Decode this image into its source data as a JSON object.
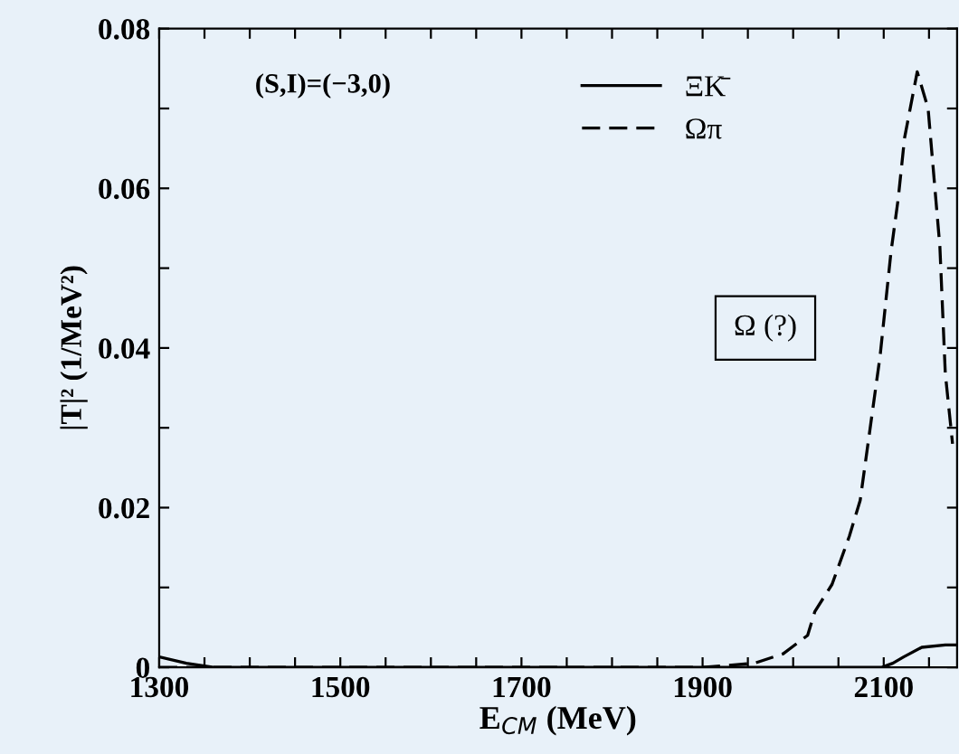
{
  "chart_data": {
    "type": "line",
    "xlabel": "E$_{CM}$ (MeV)",
    "ylabel": "|T|² (1/MeV²)",
    "annotations": [
      "(S,I)=(−3,0)",
      "Ω (?)"
    ],
    "series": [
      {
        "name": "ΞK̄",
        "color": "#000000",
        "line_style": "solid",
        "x": [
          1300,
          1330,
          1360,
          1400,
          1600,
          1800,
          2000,
          2098,
          2110,
          2122,
          2142,
          2168,
          2181
        ],
        "values": [
          0.0013,
          0.0005,
          0.0,
          0.0,
          0.0,
          0.0,
          0.0,
          0.0,
          0.0005,
          0.0013,
          0.0025,
          0.0028,
          0.0028
        ]
      },
      {
        "name": "Ωπ",
        "color": "#000000",
        "line_style": "dashed",
        "x": [
          1300,
          1600,
          1900,
          1957,
          1989,
          2016,
          2024,
          2043,
          2062,
          2074,
          2096,
          2108,
          2116,
          2123,
          2137,
          2149,
          2162,
          2168,
          2176
        ],
        "values": [
          0.0,
          0.0,
          0.0,
          0.0005,
          0.0017,
          0.004,
          0.007,
          0.0104,
          0.0164,
          0.0209,
          0.039,
          0.052,
          0.0587,
          0.0663,
          0.0746,
          0.07,
          0.0527,
          0.0368,
          0.028
        ]
      }
    ],
    "xlim": [
      1300,
      2181
    ],
    "ylim": [
      0,
      0.08
    ],
    "xticks": [
      1300,
      {
        "value": 1350,
        "label": null
      },
      {
        "value": 1400,
        "label": null
      },
      {
        "value": 1450,
        "label": null
      },
      1500,
      {
        "value": 1550,
        "label": null
      },
      {
        "value": 1600,
        "label": null
      },
      {
        "value": 1650,
        "label": null
      },
      1700,
      {
        "value": 1750,
        "label": null
      },
      {
        "value": 1800,
        "label": null
      },
      {
        "value": 1850,
        "label": null
      },
      1900,
      {
        "value": 1950,
        "label": null
      },
      {
        "value": 2000,
        "label": null
      },
      {
        "value": 2050,
        "label": null
      },
      2100,
      {
        "value": 2150,
        "label": null
      }
    ],
    "yticks": [
      {
        "value": 0,
        "label": "0"
      },
      {
        "value": 0.01,
        "label": null
      },
      0.02,
      {
        "value": 0.03,
        "label": null
      },
      0.04,
      {
        "value": 0.05,
        "label": null
      },
      0.06,
      {
        "value": 0.07,
        "label": null
      },
      0.08
    ],
    "legend": "top",
    "grid": false
  }
}
